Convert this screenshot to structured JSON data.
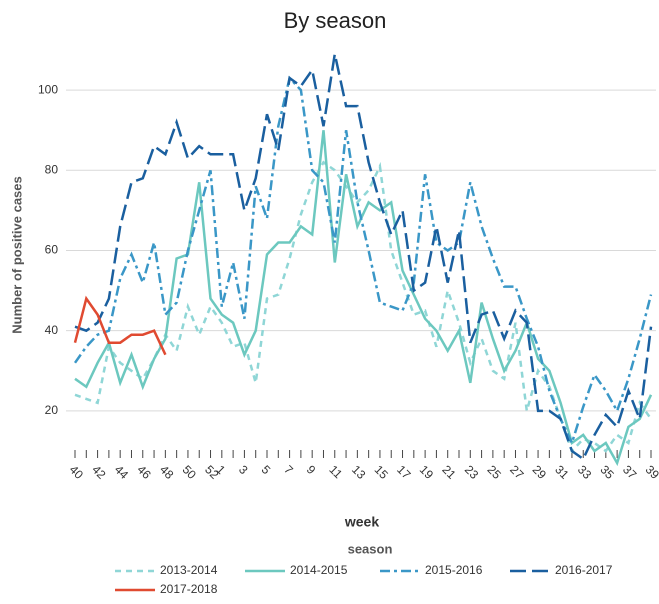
{
  "chart_data": {
    "type": "line",
    "title": "By season",
    "y_label": "Number of positive cases",
    "x_label": "week",
    "legend_title": "season",
    "categories": [
      "40",
      null,
      "42",
      null,
      "44",
      null,
      "46",
      null,
      "48",
      null,
      "50",
      null,
      "52",
      "1",
      null,
      "3",
      null,
      "5",
      null,
      "7",
      null,
      "9",
      null,
      "11",
      null,
      "13",
      null,
      "15",
      null,
      "17",
      null,
      "19",
      null,
      "21",
      null,
      "23",
      null,
      "25",
      null,
      "27",
      null,
      "29",
      null,
      "31",
      null,
      "33",
      null,
      "35",
      null,
      "37",
      null,
      "39"
    ],
    "series": [
      {
        "name": "2013-2014",
        "color": "#8fd6d6",
        "values": [
          24,
          23,
          22,
          36,
          32,
          30,
          28,
          33,
          39,
          35,
          46,
          39,
          46,
          42,
          36,
          37,
          27,
          48,
          49,
          58,
          69,
          77,
          82,
          80,
          76,
          72,
          75,
          81,
          60,
          52,
          44,
          45,
          36,
          50,
          42,
          32,
          38,
          30,
          28,
          42,
          20,
          30,
          26,
          18,
          10,
          13,
          12,
          10,
          14,
          12,
          22,
          18
        ]
      },
      {
        "name": "2014-2015",
        "color": "#6cc8bf",
        "values": [
          28,
          26,
          32,
          37,
          27,
          34,
          26,
          33,
          38,
          58,
          59,
          77,
          48,
          44,
          42,
          34,
          40,
          59,
          62,
          62,
          66,
          64,
          90,
          57,
          79,
          66,
          72,
          70,
          72,
          55,
          49,
          43,
          40,
          35,
          40,
          27,
          47,
          38,
          30,
          35,
          42,
          33,
          30,
          22,
          12,
          14,
          10,
          12,
          7,
          16,
          18,
          24
        ]
      },
      {
        "name": "2015-2016",
        "color": "#3a97c7",
        "values": [
          32,
          36,
          39,
          40,
          53,
          59,
          52,
          62,
          44,
          47,
          60,
          70,
          80,
          46,
          57,
          43,
          76,
          68,
          91,
          103,
          100,
          80,
          77,
          62,
          90,
          72,
          60,
          47,
          46,
          45,
          52,
          79,
          62,
          60,
          62,
          77,
          66,
          58,
          51,
          51,
          43,
          36,
          25,
          18,
          12,
          21,
          29,
          25,
          20,
          28,
          38,
          49
        ]
      },
      {
        "name": "2016-2017",
        "color": "#1a5f9f",
        "values": [
          41,
          40,
          42,
          48,
          66,
          77,
          78,
          86,
          84,
          92,
          83,
          86,
          84,
          84,
          84,
          70,
          78,
          94,
          85,
          103,
          101,
          105,
          91,
          109,
          96,
          96,
          82,
          72,
          64,
          70,
          50,
          52,
          66,
          52,
          65,
          37,
          44,
          45,
          38,
          45,
          42,
          20,
          20,
          18,
          10,
          8,
          14,
          19,
          16,
          25,
          18,
          41
        ]
      },
      {
        "name": "2017-2018",
        "color": "#e04a31",
        "values": [
          37,
          48,
          44,
          37,
          37,
          39,
          39,
          40,
          34,
          null,
          null,
          null,
          null,
          null,
          null,
          null,
          null,
          null,
          null,
          null,
          null,
          null,
          null,
          null,
          null,
          null,
          null,
          null,
          null,
          null,
          null,
          null,
          null,
          null,
          null,
          null,
          null,
          null,
          null,
          null,
          null,
          null,
          null,
          null,
          null,
          null,
          null,
          null,
          null,
          null,
          null,
          null
        ]
      }
    ],
    "ylim": [
      8,
      110
    ],
    "yticks": [
      20,
      40,
      60,
      80,
      100
    ],
    "grid": true
  }
}
